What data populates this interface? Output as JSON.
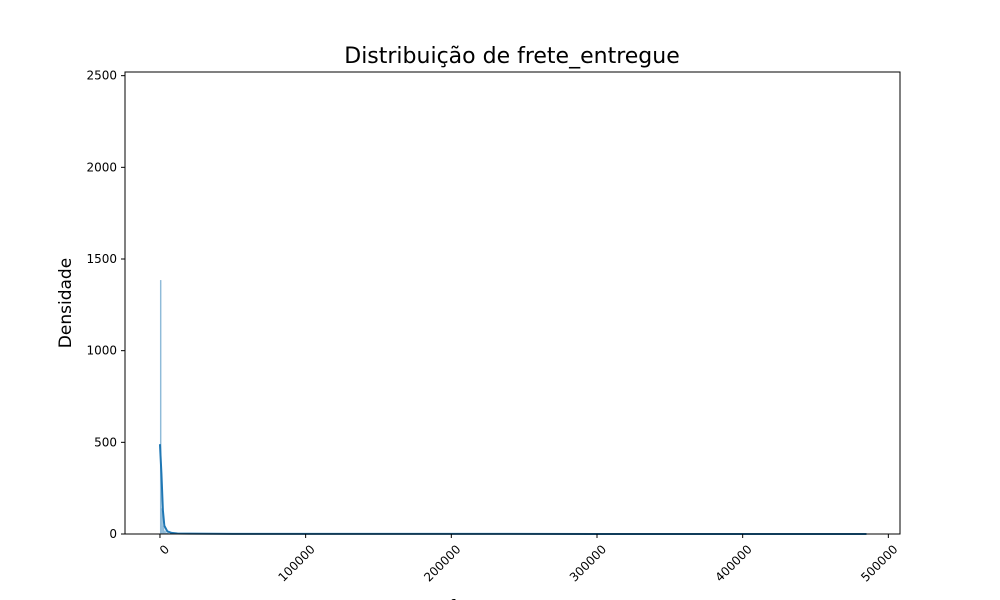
{
  "chart_data": {
    "type": "histogram",
    "title": "Distribuição de frete_entregue",
    "xlabel": "frete_entregue",
    "ylabel": "Densidade",
    "xlim": [
      -24000,
      508000
    ],
    "ylim": [
      0,
      2520
    ],
    "x_ticks": [
      0,
      100000,
      200000,
      300000,
      400000,
      500000
    ],
    "x_tick_labels": [
      "0",
      "100000",
      "200000",
      "300000",
      "400000",
      "500000"
    ],
    "x_tick_rotation": 45,
    "y_ticks": [
      0,
      500,
      1000,
      1500,
      2000,
      2500
    ],
    "y_tick_labels": [
      "0",
      "500",
      "1000",
      "1500",
      "2000",
      "2500"
    ],
    "grid": false,
    "histogram": {
      "color": "#1f77b4",
      "bins": [
        {
          "x0": 0,
          "x1": 1000,
          "value": 1385
        },
        {
          "x0": 1000,
          "x1": 2000,
          "value": 140
        },
        {
          "x0": 2000,
          "x1": 3000,
          "value": 45
        },
        {
          "x0": 3000,
          "x1": 4000,
          "value": 18
        },
        {
          "x0": 4000,
          "x1": 6000,
          "value": 8
        }
      ]
    },
    "kde": {
      "color": "#1f77b4",
      "x": [
        0,
        1000,
        2000,
        3000,
        5000,
        8000,
        12000,
        20000,
        50000,
        100000,
        200000,
        300000,
        400000,
        485000
      ],
      "y": [
        490,
        330,
        130,
        45,
        15,
        6,
        3,
        2,
        1,
        1,
        0.5,
        0.3,
        0.2,
        0.1
      ]
    }
  }
}
